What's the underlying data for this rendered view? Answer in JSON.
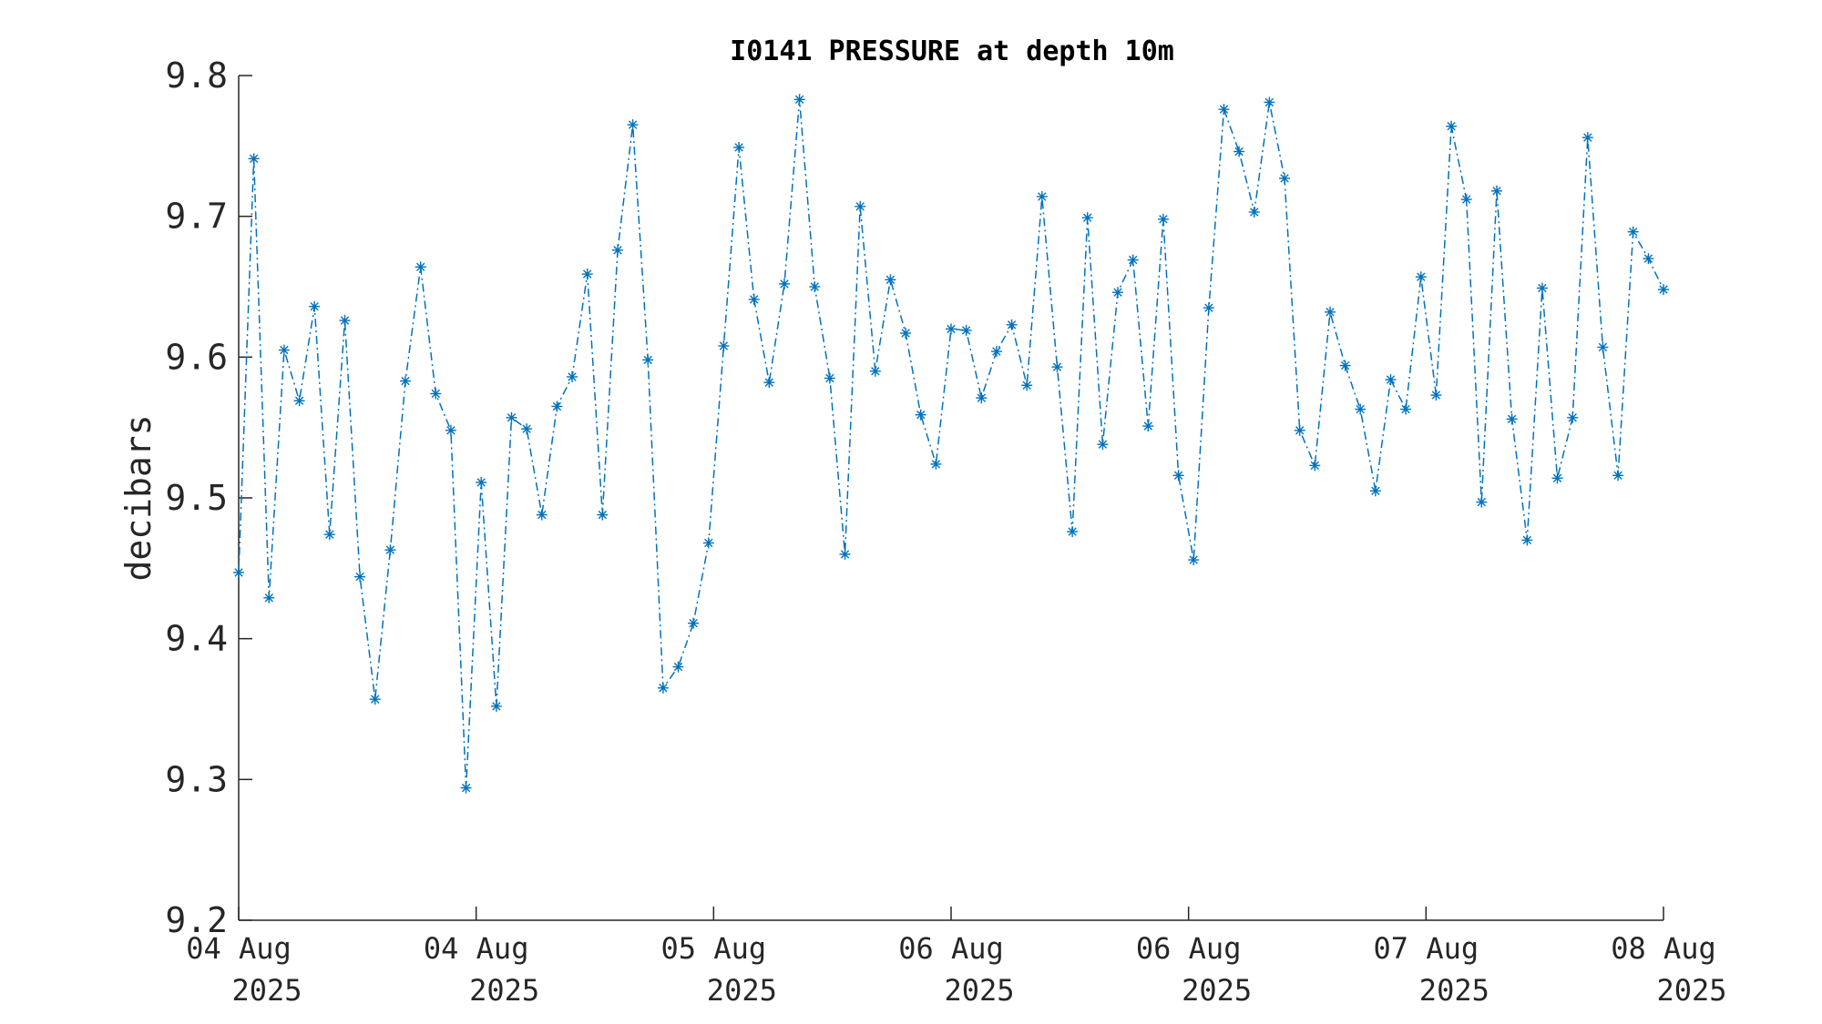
{
  "chart_data": {
    "type": "line",
    "title": "I0141 PRESSURE at depth 10m",
    "xlabel": "",
    "ylabel": "decibars",
    "ylim": [
      9.2,
      9.8
    ],
    "yticks": [
      "9.2",
      "9.3",
      "9.4",
      "9.5",
      "9.6",
      "9.7",
      "9.8"
    ],
    "xticks": [
      {
        "line1": "04 Aug",
        "line2": "2025"
      },
      {
        "line1": "04 Aug",
        "line2": "2025"
      },
      {
        "line1": "05 Aug",
        "line2": "2025"
      },
      {
        "line1": "06 Aug",
        "line2": "2025"
      },
      {
        "line1": "06 Aug",
        "line2": "2025"
      },
      {
        "line1": "07 Aug",
        "line2": "2025"
      },
      {
        "line1": "08 Aug",
        "line2": "2025"
      }
    ],
    "grid": false,
    "series": [
      {
        "color": "#0072BD",
        "line_style": "dash-dot",
        "marker": "asterisk",
        "values": [
          9.447,
          9.741,
          9.429,
          9.605,
          9.569,
          9.636,
          9.474,
          9.626,
          9.444,
          9.357,
          9.463,
          9.583,
          9.664,
          9.574,
          9.548,
          9.294,
          9.511,
          9.352,
          9.557,
          9.549,
          9.488,
          9.565,
          9.586,
          9.659,
          9.488,
          9.676,
          9.765,
          9.598,
          9.365,
          9.38,
          9.411,
          9.468,
          9.608,
          9.749,
          9.641,
          9.582,
          9.652,
          9.783,
          9.65,
          9.585,
          9.46,
          9.707,
          9.59,
          9.655,
          9.617,
          9.559,
          9.524,
          9.62,
          9.619,
          9.571,
          9.604,
          9.623,
          9.58,
          9.714,
          9.593,
          9.476,
          9.699,
          9.538,
          9.646,
          9.669,
          9.551,
          9.698,
          9.516,
          9.456,
          9.635,
          9.776,
          9.746,
          9.703,
          9.781,
          9.727,
          9.548,
          9.523,
          9.632,
          9.594,
          9.563,
          9.505,
          9.584,
          9.563,
          9.657,
          9.573,
          9.764,
          9.712,
          9.497,
          9.718,
          9.556,
          9.47,
          9.649,
          9.514,
          9.557,
          9.756,
          9.607,
          9.516,
          9.689,
          9.67,
          9.648
        ]
      }
    ]
  }
}
